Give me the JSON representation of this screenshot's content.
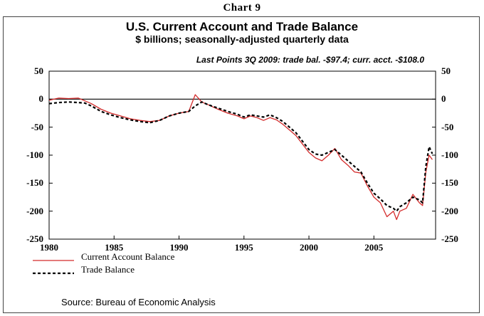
{
  "header": {
    "chart_label": "Chart 9"
  },
  "footer": {
    "source": "Source: Bureau of Economic Analysis"
  },
  "chart_data": {
    "type": "line",
    "title": "U.S. Current Account and Trade Balance",
    "subtitle": "$ billions; seasonally-adjusted quarterly data",
    "annotation": "Last Points 3Q 2009: trade bal. -$97.4; curr. acct. -$108.0",
    "xlim": [
      1980,
      2009.75
    ],
    "ylim": [
      -250,
      50
    ],
    "x_ticks": [
      1980,
      1985,
      1990,
      1995,
      2000,
      2005
    ],
    "y_ticks": [
      50,
      0,
      -50,
      -100,
      -150,
      -200,
      -250
    ],
    "legend": [
      {
        "name": "Current Account Balance",
        "style": "solid",
        "color": "#d42b2b"
      },
      {
        "name": "Trade Balance",
        "style": "dashed",
        "color": "#000000"
      }
    ],
    "series": [
      {
        "name": "Current Account Balance",
        "color": "#d42b2b",
        "style": "solid",
        "points": [
          [
            1980.0,
            -2
          ],
          [
            1980.75,
            2
          ],
          [
            1981.5,
            1
          ],
          [
            1982.25,
            2
          ],
          [
            1982.75,
            -3
          ],
          [
            1983.25,
            -8
          ],
          [
            1984.0,
            -18
          ],
          [
            1984.75,
            -25
          ],
          [
            1985.5,
            -30
          ],
          [
            1986.25,
            -35
          ],
          [
            1987.0,
            -38
          ],
          [
            1987.75,
            -40
          ],
          [
            1988.5,
            -38
          ],
          [
            1989.25,
            -30
          ],
          [
            1990.0,
            -25
          ],
          [
            1990.75,
            -22
          ],
          [
            1991.25,
            8
          ],
          [
            1991.75,
            -5
          ],
          [
            1992.25,
            -10
          ],
          [
            1993.0,
            -18
          ],
          [
            1993.75,
            -25
          ],
          [
            1994.5,
            -30
          ],
          [
            1995.0,
            -35
          ],
          [
            1995.5,
            -30
          ],
          [
            1996.0,
            -33
          ],
          [
            1996.5,
            -38
          ],
          [
            1997.0,
            -33
          ],
          [
            1997.5,
            -37
          ],
          [
            1998.0,
            -45
          ],
          [
            1998.5,
            -55
          ],
          [
            1999.0,
            -65
          ],
          [
            1999.5,
            -80
          ],
          [
            2000.0,
            -95
          ],
          [
            2000.5,
            -105
          ],
          [
            2001.0,
            -110
          ],
          [
            2001.5,
            -100
          ],
          [
            2002.0,
            -88
          ],
          [
            2002.5,
            -108
          ],
          [
            2003.0,
            -118
          ],
          [
            2003.5,
            -130
          ],
          [
            2004.0,
            -132
          ],
          [
            2004.5,
            -155
          ],
          [
            2005.0,
            -175
          ],
          [
            2005.5,
            -185
          ],
          [
            2006.0,
            -210
          ],
          [
            2006.5,
            -200
          ],
          [
            2006.75,
            -215
          ],
          [
            2007.0,
            -200
          ],
          [
            2007.5,
            -195
          ],
          [
            2008.0,
            -170
          ],
          [
            2008.5,
            -185
          ],
          [
            2008.75,
            -190
          ],
          [
            2009.0,
            -130
          ],
          [
            2009.25,
            -100
          ],
          [
            2009.5,
            -108
          ]
        ]
      },
      {
        "name": "Trade Balance",
        "color": "#000000",
        "style": "dashed",
        "points": [
          [
            1980.0,
            -8
          ],
          [
            1980.75,
            -6
          ],
          [
            1981.5,
            -5
          ],
          [
            1982.25,
            -6
          ],
          [
            1982.75,
            -7
          ],
          [
            1983.25,
            -12
          ],
          [
            1984.0,
            -22
          ],
          [
            1984.75,
            -28
          ],
          [
            1985.5,
            -33
          ],
          [
            1986.25,
            -37
          ],
          [
            1987.0,
            -40
          ],
          [
            1987.75,
            -42
          ],
          [
            1988.5,
            -38
          ],
          [
            1989.25,
            -30
          ],
          [
            1990.0,
            -25
          ],
          [
            1990.75,
            -22
          ],
          [
            1991.25,
            -12
          ],
          [
            1991.75,
            -5
          ],
          [
            1992.25,
            -10
          ],
          [
            1993.0,
            -16
          ],
          [
            1993.75,
            -22
          ],
          [
            1994.5,
            -27
          ],
          [
            1995.0,
            -32
          ],
          [
            1995.5,
            -28
          ],
          [
            1996.0,
            -30
          ],
          [
            1996.5,
            -32
          ],
          [
            1997.0,
            -28
          ],
          [
            1997.5,
            -33
          ],
          [
            1998.0,
            -40
          ],
          [
            1998.5,
            -50
          ],
          [
            1999.0,
            -60
          ],
          [
            1999.5,
            -75
          ],
          [
            2000.0,
            -90
          ],
          [
            2000.5,
            -98
          ],
          [
            2001.0,
            -100
          ],
          [
            2001.5,
            -95
          ],
          [
            2002.0,
            -90
          ],
          [
            2002.5,
            -100
          ],
          [
            2003.0,
            -110
          ],
          [
            2003.5,
            -120
          ],
          [
            2004.0,
            -130
          ],
          [
            2004.5,
            -150
          ],
          [
            2005.0,
            -168
          ],
          [
            2005.5,
            -178
          ],
          [
            2006.0,
            -190
          ],
          [
            2006.5,
            -195
          ],
          [
            2006.75,
            -200
          ],
          [
            2007.0,
            -192
          ],
          [
            2007.5,
            -185
          ],
          [
            2008.0,
            -175
          ],
          [
            2008.5,
            -180
          ],
          [
            2008.75,
            -185
          ],
          [
            2009.0,
            -120
          ],
          [
            2009.25,
            -85
          ],
          [
            2009.5,
            -97.4
          ]
        ]
      }
    ]
  }
}
